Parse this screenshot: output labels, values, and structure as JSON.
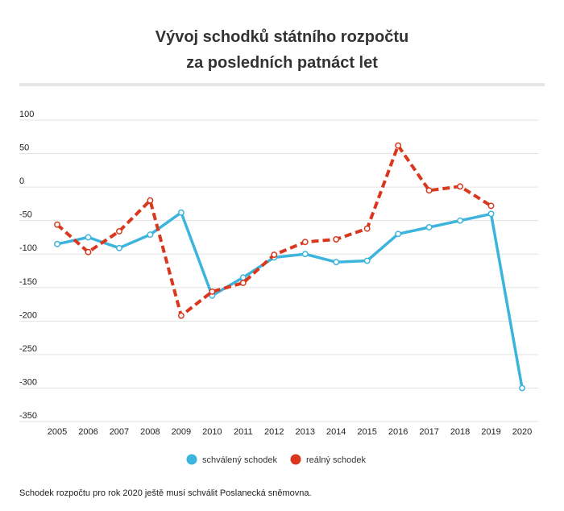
{
  "chart_data": {
    "type": "line",
    "title_line1": "Vývoj schodků státního rozpočtu",
    "title_line2": "za posledních patnáct let",
    "xlabel": "",
    "ylabel": "",
    "categories": [
      "2005",
      "2006",
      "2007",
      "2008",
      "2009",
      "2010",
      "2011",
      "2012",
      "2013",
      "2014",
      "2015",
      "2016",
      "2017",
      "2018",
      "2019",
      "2020"
    ],
    "ylim": [
      -350,
      100
    ],
    "yticks": [
      100,
      50,
      0,
      -50,
      -100,
      -150,
      -200,
      -250,
      -300,
      -350
    ],
    "grid": true,
    "legend_position": "bottom",
    "series": [
      {
        "name": "schválený schodek",
        "color": "#3db4dc",
        "style": "solid",
        "values": [
          -85,
          -75,
          -91,
          -71,
          -38,
          -162,
          -135,
          -105,
          -100,
          -112,
          -110,
          -70,
          -60,
          -50,
          -40,
          -300
        ]
      },
      {
        "name": "reálný schodek",
        "color": "#d9381e",
        "style": "dashed",
        "values": [
          -56,
          -97,
          -66,
          -20,
          -192,
          -156,
          -143,
          -101,
          -82,
          -78,
          -62,
          62,
          -5,
          1,
          -28,
          null
        ]
      }
    ]
  },
  "note": "Schodek rozpočtu pro rok 2020 ještě musí schválit Poslanecká sněmovna."
}
